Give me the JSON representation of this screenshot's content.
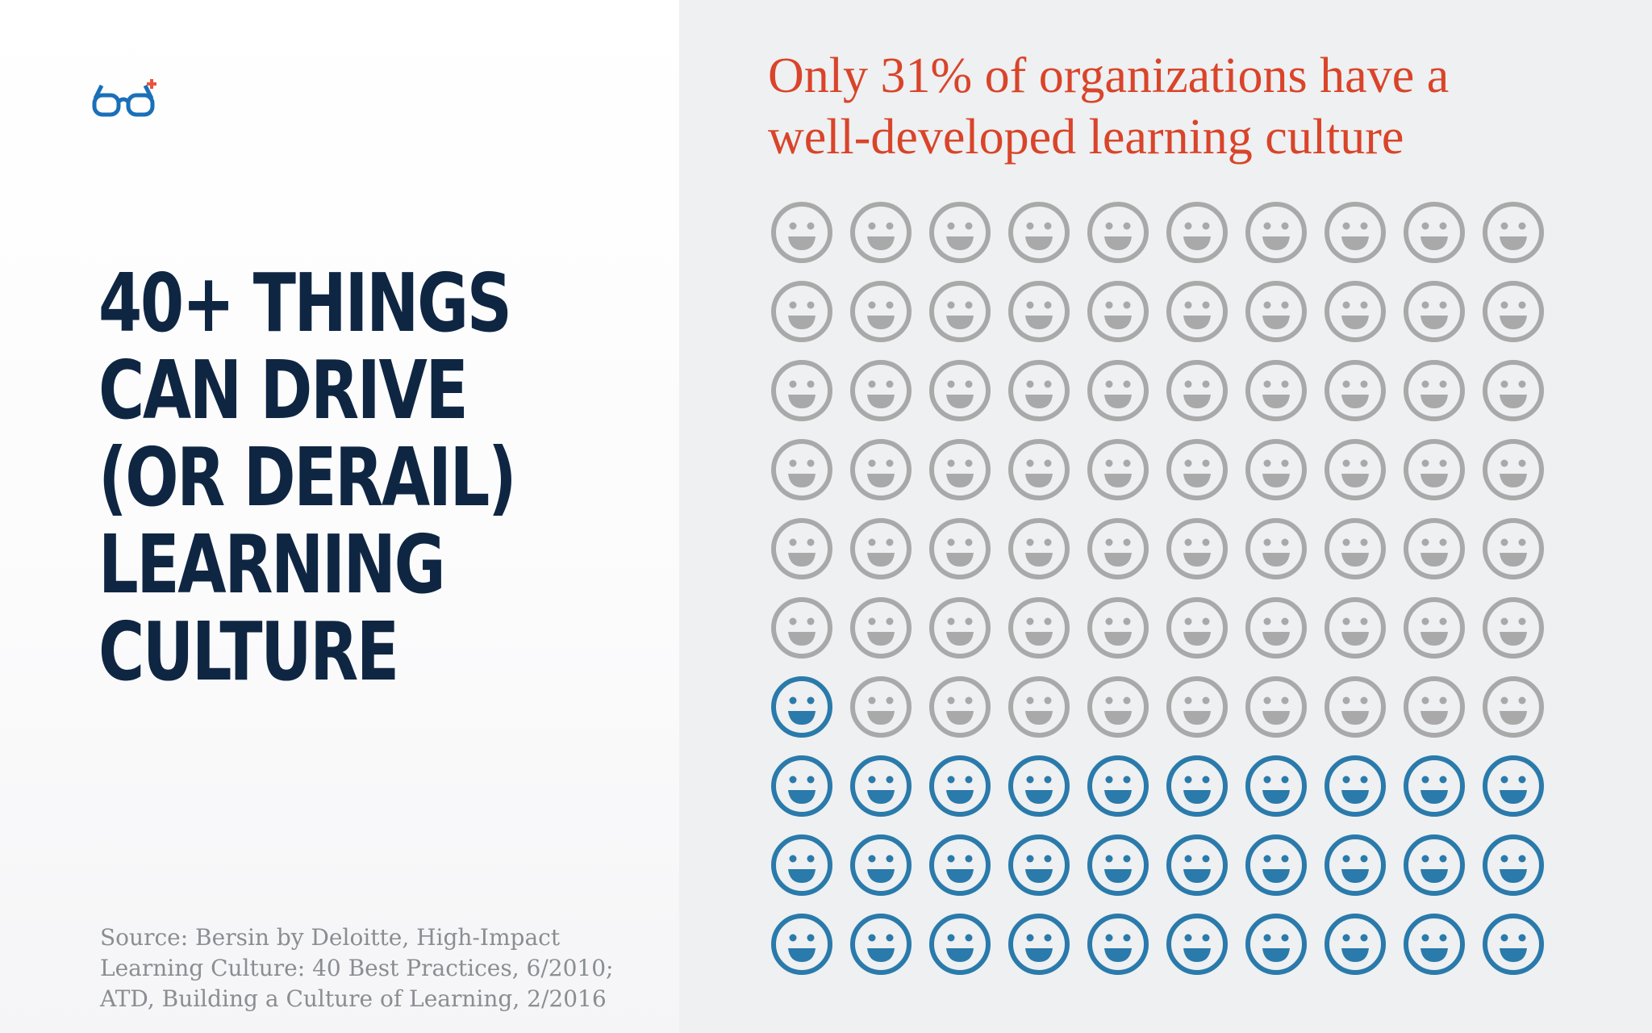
{
  "headline": {
    "lines": [
      "40+ THINGS",
      "CAN DRIVE",
      "(OR DERAIL)",
      "LEARNING",
      "CULTURE"
    ]
  },
  "source": {
    "lines": [
      "Source: Bersin by Deloitte, High-Impact",
      "Learning Culture: 40 Best Practices, 6/2010;",
      "ATD, Building a Culture of Learning, 2/2016"
    ]
  },
  "logo": {
    "icon": "glasses-icon"
  },
  "colors": {
    "accent": "#d9442a",
    "headline": "#0f2643",
    "highlight_face": "#2a7aab",
    "muted_face": "#a9a9a9",
    "right_background": "#eef0f1"
  },
  "chart_data": {
    "type": "pictograph",
    "title": "Only 31% of organizations have a well-developed learning culture",
    "title_lines": [
      "Only 31% of organizations have a",
      "well-developed learning culture"
    ],
    "total": 100,
    "highlighted": 31,
    "rows": 10,
    "columns": 10,
    "fill_from": "bottom",
    "icon": "smiley-face-icon"
  }
}
